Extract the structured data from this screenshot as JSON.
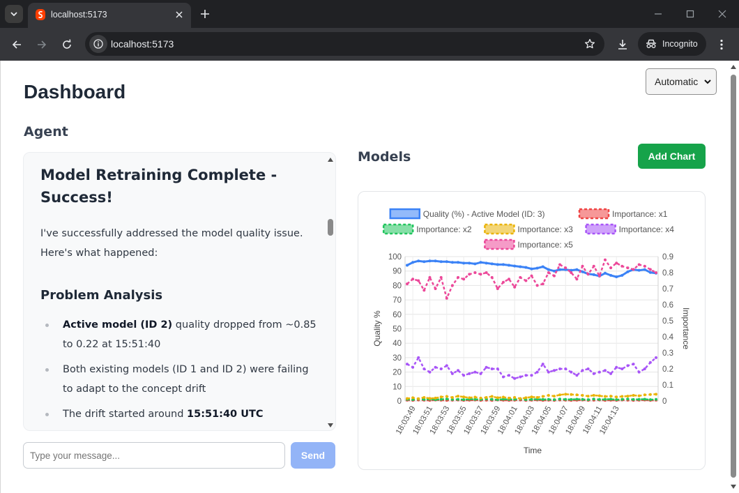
{
  "browser": {
    "tab_title": "localhost:5173",
    "url": "localhost:5173",
    "profile_label": "Incognito"
  },
  "page": {
    "title": "Dashboard",
    "mode_select": {
      "selected": "Automatic"
    }
  },
  "agent": {
    "heading": "Agent",
    "message": {
      "title": "Model Retraining Complete - Success!",
      "intro": "I've successfully addressed the model quality issue. Here's what happened:",
      "section_heading": "Problem Analysis",
      "bullets": [
        {
          "bold": "Active model (ID 2)",
          "text": " quality dropped from ~0.85 to 0.22 at 15:51:40",
          "bold_after": ""
        },
        {
          "bold": "",
          "text": "Both existing models (ID 1 and ID 2) were failing to adapt to the concept drift",
          "bold_after": ""
        },
        {
          "bold": "",
          "text": "The drift started around ",
          "bold_after": "15:51:40 UTC"
        }
      ]
    },
    "input": {
      "placeholder": "Type your message...",
      "value": ""
    },
    "send_label": "Send"
  },
  "models": {
    "heading": "Models",
    "add_chart_label": "Add Chart"
  },
  "chart_data": {
    "type": "line",
    "title": "",
    "xlabel": "Time",
    "ylabel_left": "Quality %",
    "ylabel_right": "Importance",
    "ylim_left": [
      0,
      100
    ],
    "ylim_right": [
      0,
      0.9
    ],
    "yticks_left": [
      0,
      10,
      20,
      30,
      40,
      50,
      60,
      70,
      80,
      90,
      100
    ],
    "yticks_right": [
      0,
      0.1,
      0.2,
      0.3,
      0.4,
      0.5,
      0.6,
      0.7,
      0.8,
      0.9
    ],
    "grid": true,
    "legend_position": "top",
    "x_tick_labels": [
      "18:03:49",
      "18:03:51",
      "18:03:53",
      "18:03:55",
      "18:03:57",
      "18:03:59",
      "18:04:01",
      "18:04:03",
      "18:04:05",
      "18:04:07",
      "18:04:09",
      "18:04:11",
      "18:04:13"
    ],
    "x_points": 45,
    "series": [
      {
        "name": "Quality (%) - Active Model (ID: 3)",
        "axis": "left",
        "style": "solid",
        "color": "#3b82f6",
        "values": [
          94,
          96,
          97,
          96.5,
          97,
          97,
          96.5,
          96.5,
          96,
          96,
          95.5,
          95.5,
          95,
          96,
          95.5,
          95,
          94.5,
          94.5,
          94,
          93.5,
          93,
          92.5,
          91.5,
          92,
          93,
          91,
          90,
          91,
          91,
          90.5,
          91,
          89.5,
          88,
          87.5,
          86.5,
          88.5,
          87,
          86,
          87,
          89.5,
          91,
          90.5,
          91,
          89,
          88.5
        ]
      },
      {
        "name": "Importance: x1",
        "axis": "right",
        "style": "dashed",
        "color": "#ef4444",
        "values": [
          0.005,
          0.004,
          0.006,
          0.005,
          0.004,
          0.006,
          0.005,
          0.004,
          0.005,
          0.006,
          0.004,
          0.005,
          0.006,
          0.004,
          0.005,
          0.004,
          0.006,
          0.005,
          0.004,
          0.005,
          0.006,
          0.004,
          0.005,
          0.006,
          0.004,
          0.005,
          0.004,
          0.006,
          0.005,
          0.004,
          0.005,
          0.006,
          0.004,
          0.005,
          0.006,
          0.004,
          0.005,
          0.004,
          0.006,
          0.005,
          0.004,
          0.005,
          0.006,
          0.004,
          0.005
        ]
      },
      {
        "name": "Importance: x2",
        "axis": "right",
        "style": "dashed",
        "color": "#22c55e",
        "values": [
          0.01,
          0.008,
          0.012,
          0.009,
          0.011,
          0.008,
          0.01,
          0.012,
          0.009,
          0.01,
          0.008,
          0.011,
          0.01,
          0.009,
          0.012,
          0.01,
          0.008,
          0.011,
          0.009,
          0.01,
          0.012,
          0.008,
          0.01,
          0.011,
          0.009,
          0.01,
          0.008,
          0.012,
          0.01,
          0.009,
          0.011,
          0.01,
          0.008,
          0.012,
          0.009,
          0.01,
          0.011,
          0.008,
          0.01,
          0.012,
          0.009,
          0.01,
          0.011,
          0.008,
          0.01
        ]
      },
      {
        "name": "Importance: x3",
        "axis": "right",
        "style": "dashed",
        "color": "#eab308",
        "values": [
          0.015,
          0.02,
          0.014,
          0.022,
          0.016,
          0.018,
          0.025,
          0.028,
          0.022,
          0.03,
          0.025,
          0.02,
          0.024,
          0.018,
          0.022,
          0.028,
          0.02,
          0.024,
          0.018,
          0.022,
          0.015,
          0.02,
          0.025,
          0.022,
          0.028,
          0.035,
          0.03,
          0.038,
          0.042,
          0.04,
          0.038,
          0.035,
          0.03,
          0.035,
          0.032,
          0.028,
          0.03,
          0.025,
          0.028,
          0.03,
          0.035,
          0.032,
          0.038,
          0.04,
          0.042
        ]
      },
      {
        "name": "Importance: x4",
        "axis": "right",
        "style": "dashed",
        "color": "#a855f7",
        "values": [
          0.23,
          0.21,
          0.27,
          0.2,
          0.18,
          0.21,
          0.2,
          0.22,
          0.17,
          0.19,
          0.16,
          0.17,
          0.18,
          0.17,
          0.21,
          0.2,
          0.2,
          0.15,
          0.16,
          0.14,
          0.15,
          0.16,
          0.16,
          0.18,
          0.23,
          0.18,
          0.19,
          0.2,
          0.2,
          0.18,
          0.16,
          0.19,
          0.2,
          0.17,
          0.18,
          0.19,
          0.17,
          0.21,
          0.2,
          0.22,
          0.23,
          0.18,
          0.2,
          0.24,
          0.27
        ]
      },
      {
        "name": "Importance: x5",
        "axis": "right",
        "style": "dashed",
        "color": "#ec4899",
        "values": [
          0.73,
          0.76,
          0.75,
          0.69,
          0.77,
          0.7,
          0.77,
          0.64,
          0.72,
          0.77,
          0.76,
          0.79,
          0.8,
          0.79,
          0.8,
          0.77,
          0.7,
          0.74,
          0.76,
          0.71,
          0.77,
          0.75,
          0.78,
          0.72,
          0.73,
          0.8,
          0.78,
          0.85,
          0.83,
          0.8,
          0.76,
          0.84,
          0.79,
          0.84,
          0.78,
          0.88,
          0.83,
          0.86,
          0.84,
          0.83,
          0.82,
          0.85,
          0.84,
          0.82,
          0.8
        ]
      }
    ]
  }
}
